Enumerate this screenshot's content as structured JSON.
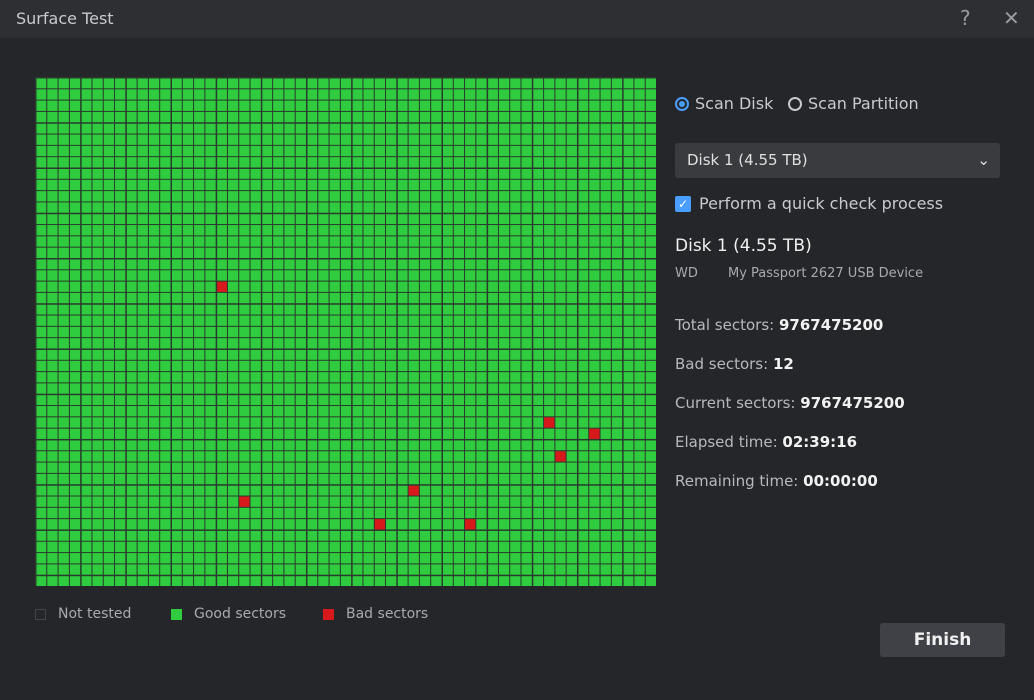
{
  "window": {
    "title": "Surface Test"
  },
  "scan_options": [
    {
      "label": "Scan Disk",
      "selected": true
    },
    {
      "label": "Scan Partition",
      "selected": false
    }
  ],
  "disk_select": "Disk 1 (4.55 TB)",
  "quick_check": {
    "label": "Perform a quick check process",
    "checked": true
  },
  "disk": {
    "name": "Disk 1 (4.55 TB)",
    "vendor": "WD",
    "model": "My Passport 2627 USB Device"
  },
  "stats": [
    {
      "label": "Total sectors:",
      "value": 9767475200
    },
    {
      "label": "Bad sectors:",
      "value": 12
    },
    {
      "label": "Current sectors:",
      "value": 9767475200
    },
    {
      "label": "Elapsed time:",
      "value": "02:39:16"
    },
    {
      "label": "Remaining time:",
      "value": "00:00:00"
    }
  ],
  "legend": [
    "Not tested",
    "Good sectors",
    "Bad sectors"
  ],
  "button": "Finish"
}
